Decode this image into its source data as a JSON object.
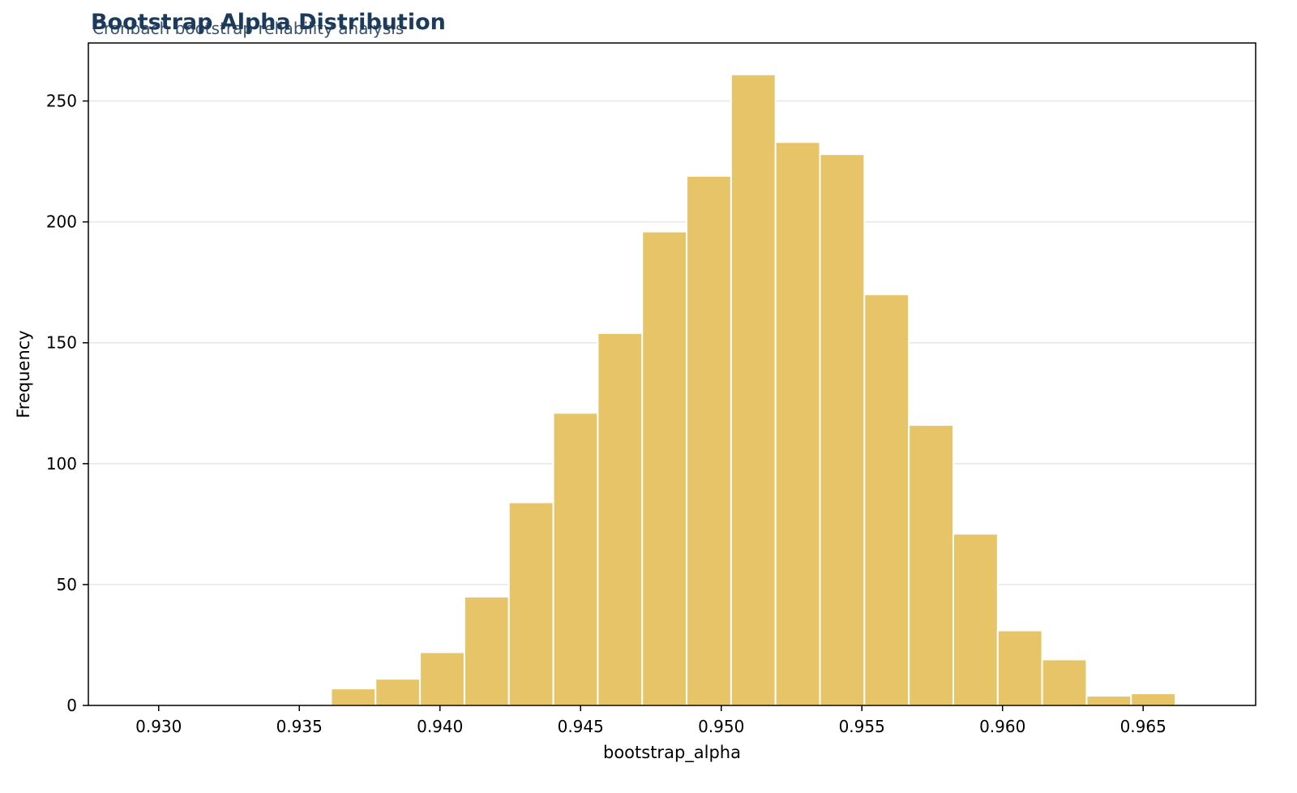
{
  "title": "Bootstrap Alpha Distribution",
  "subtitle": "Cronbach bootstrap reliability analysis",
  "chart_data": {
    "type": "bar",
    "title": "Bootstrap Alpha Distribution",
    "subtitle": "Cronbach bootstrap reliability analysis",
    "xlabel": "bootstrap_alpha",
    "ylabel": "Frequency",
    "xlim": [
      0.9275,
      0.969
    ],
    "ylim": [
      0,
      274
    ],
    "x_ticks": [
      0.93,
      0.935,
      0.94,
      0.945,
      0.95,
      0.955,
      0.96,
      0.965
    ],
    "x_tick_labels": [
      "0.930",
      "0.935",
      "0.940",
      "0.945",
      "0.950",
      "0.955",
      "0.960",
      "0.965"
    ],
    "y_ticks": [
      0,
      50,
      100,
      150,
      200,
      250
    ],
    "y_tick_labels": [
      "0",
      "50",
      "100",
      "150",
      "200",
      "250"
    ],
    "grid": "horizontal",
    "bar_color": "#e8c468",
    "bin_width": 0.00158,
    "bin_starts": [
      0.92823,
      0.92981,
      0.93139,
      0.93297,
      0.93455,
      0.93613,
      0.93771,
      0.93929,
      0.94087,
      0.94245,
      0.94403,
      0.94561,
      0.94719,
      0.94877,
      0.95035,
      0.95193,
      0.95351,
      0.95509,
      0.95667,
      0.95825,
      0.95983,
      0.96141,
      0.96299,
      0.96457,
      0.96615
    ],
    "values": [
      0,
      0,
      0,
      0,
      0,
      7,
      11,
      22,
      45,
      84,
      121,
      154,
      196,
      219,
      261,
      233,
      228,
      170,
      116,
      71,
      31,
      19,
      4,
      5,
      0
    ]
  }
}
